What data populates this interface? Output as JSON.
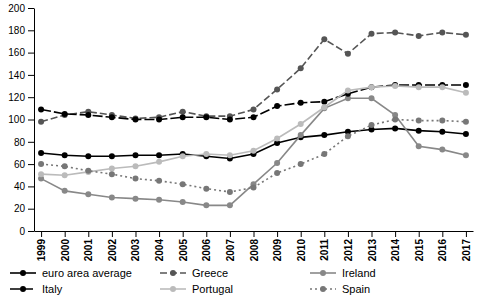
{
  "chart_data": {
    "type": "line",
    "categories": [
      "1999",
      "2000",
      "2001",
      "2002",
      "2003",
      "2004",
      "2005",
      "2006",
      "2007",
      "2008",
      "2009",
      "2010",
      "2011",
      "2012",
      "2013",
      "2014",
      "2015",
      "2016",
      "2017"
    ],
    "ylim": [
      0,
      200
    ],
    "yticks": [
      0,
      20,
      40,
      60,
      80,
      100,
      120,
      140,
      160,
      180,
      200
    ],
    "grid": false,
    "legend": "bottom",
    "series": [
      {
        "name": "euro area average",
        "color": "#000000",
        "line_style": "solid",
        "marker": "circle",
        "values": [
          70,
          68,
          67,
          67,
          68,
          68,
          69,
          67,
          65,
          69,
          79,
          84,
          86,
          89,
          91,
          92,
          90,
          89,
          87
        ]
      },
      {
        "name": "Greece",
        "color": "#555555",
        "line_style": "dashed",
        "marker": "circle",
        "values": [
          98,
          104,
          107,
          104,
          101,
          102,
          107,
          103,
          103,
          109,
          127,
          146,
          172,
          159,
          177,
          178,
          175,
          178,
          176
        ]
      },
      {
        "name": "Ireland",
        "color": "#888888",
        "line_style": "solid",
        "marker": "circle",
        "values": [
          47,
          36,
          33,
          30,
          29,
          28,
          26,
          23,
          23,
          42,
          61,
          86,
          110,
          119,
          119,
          104,
          76,
          73,
          68
        ]
      },
      {
        "name": "Italy",
        "color": "#000000",
        "line_style": "longdash",
        "marker": "circle",
        "values": [
          109,
          105,
          104,
          102,
          100,
          100,
          102,
          102,
          100,
          102,
          112,
          115,
          116,
          123,
          129,
          131,
          131,
          131,
          131
        ]
      },
      {
        "name": "Portugal",
        "color": "#bbbbbb",
        "line_style": "solid",
        "marker": "circle",
        "values": [
          51,
          50,
          53,
          56,
          58,
          62,
          67,
          69,
          68,
          72,
          83,
          96,
          111,
          126,
          129,
          130,
          129,
          129,
          124
        ]
      },
      {
        "name": "Spain",
        "color": "#777777",
        "line_style": "dotted",
        "marker": "circle",
        "values": [
          60,
          58,
          54,
          51,
          47,
          45,
          42,
          38,
          35,
          39,
          52,
          60,
          69,
          85,
          95,
          100,
          99,
          99,
          98
        ]
      }
    ]
  }
}
